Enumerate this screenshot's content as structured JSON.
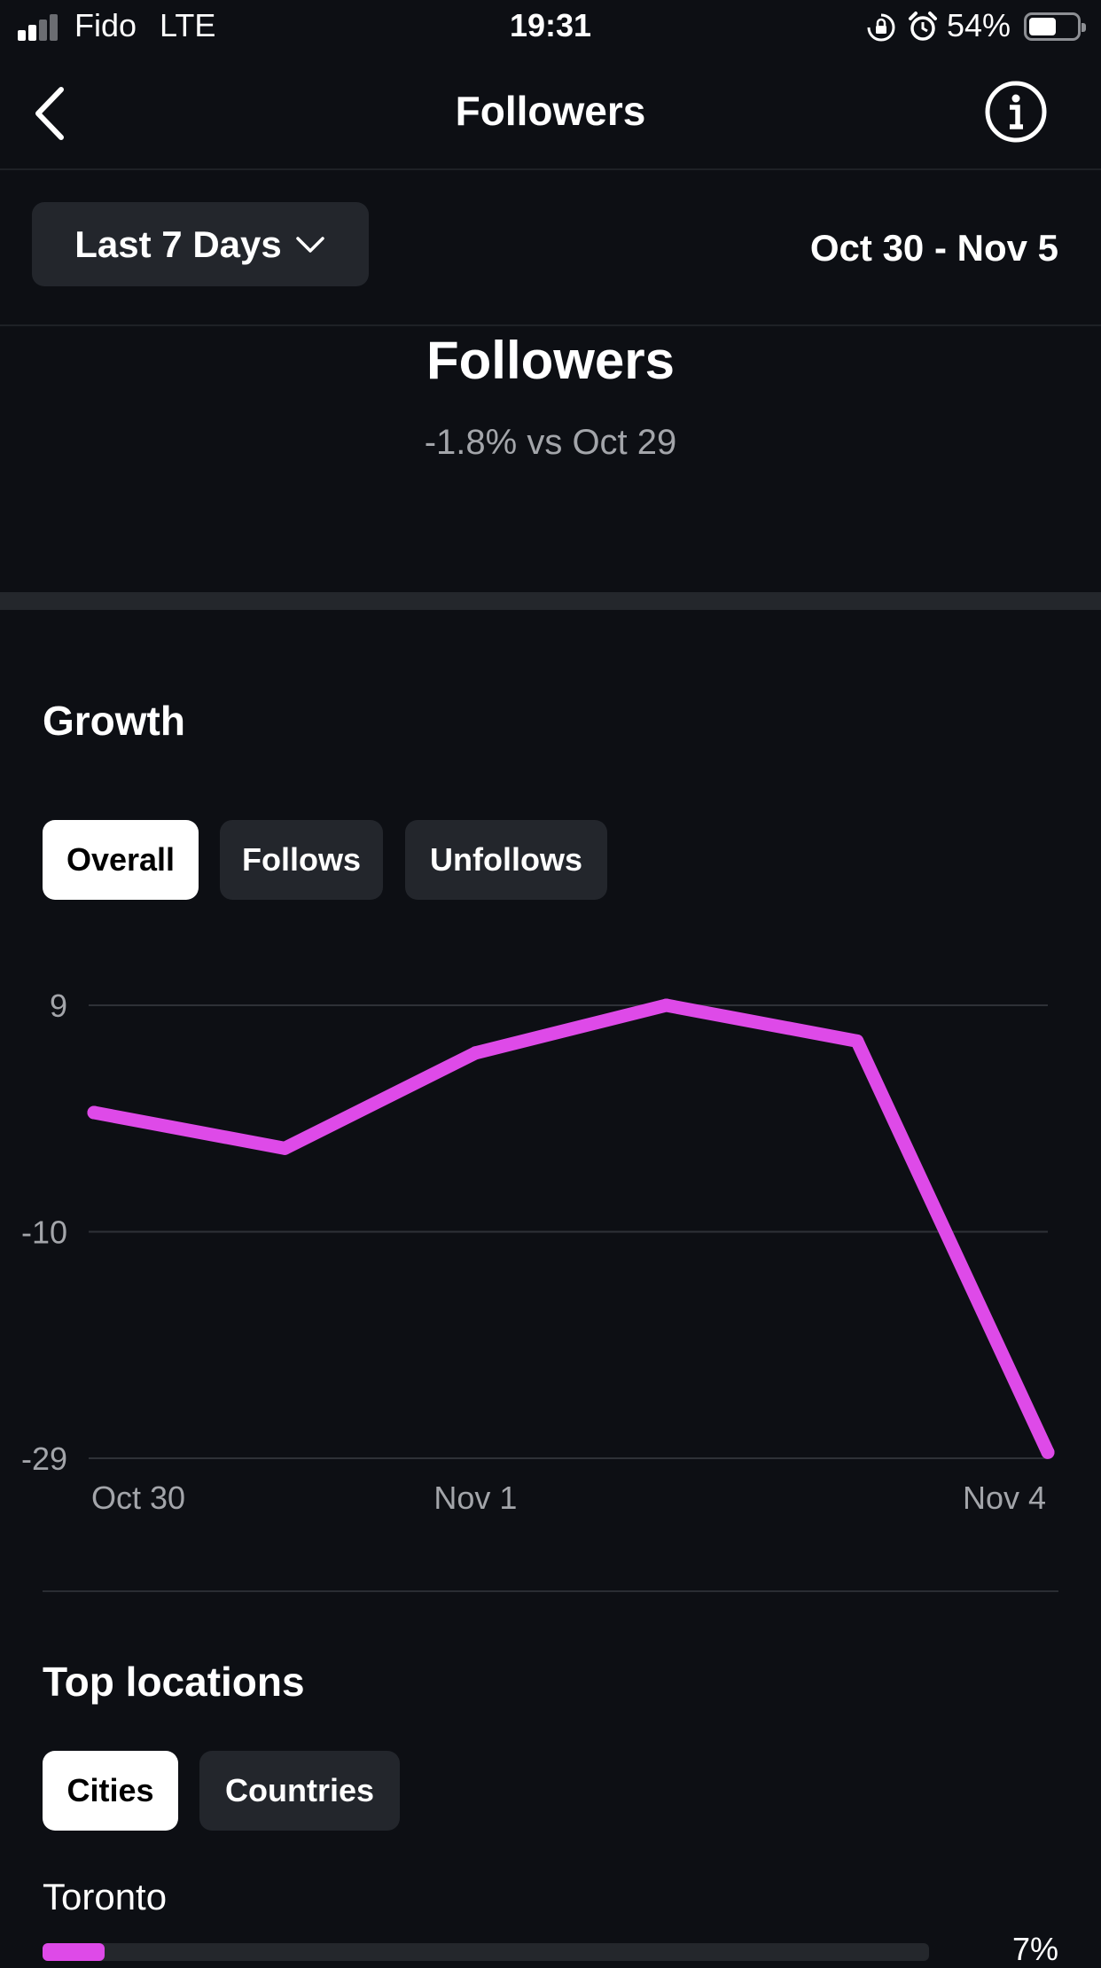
{
  "status_bar": {
    "carrier": "Fido",
    "network": "LTE",
    "time": "19:31",
    "battery": "54%",
    "battery_level": 0.54
  },
  "header": {
    "title": "Followers",
    "back_icon": "chevron-left-icon",
    "info_icon": "info-icon"
  },
  "filter": {
    "range_label": "Last 7 Days",
    "date_range": "Oct 30 - Nov 5"
  },
  "summary": {
    "title": "Followers",
    "change": "-1.8% vs Oct 29"
  },
  "growth": {
    "title": "Growth",
    "tabs": [
      {
        "label": "Overall",
        "active": true
      },
      {
        "label": "Follows",
        "active": false
      },
      {
        "label": "Unfollows",
        "active": false
      }
    ]
  },
  "chart_data": {
    "type": "line",
    "x": [
      "Oct 30",
      "Oct 31",
      "Nov 1",
      "Nov 2",
      "Nov 3",
      "Nov 4"
    ],
    "x_tick_labels": [
      "Oct 30",
      "Nov 1",
      "Nov 4"
    ],
    "y_ticks": [
      "9",
      "-10",
      "-29"
    ],
    "ylim": [
      -29,
      9
    ],
    "series": [
      {
        "values": [
          0,
          -3,
          5,
          9,
          6,
          -28.5
        ],
        "color": "#de4ae8"
      }
    ],
    "grid": true
  },
  "locations": {
    "title": "Top locations",
    "tabs": [
      {
        "label": "Cities",
        "active": true
      },
      {
        "label": "Countries",
        "active": false
      }
    ],
    "items": [
      {
        "name": "Toronto",
        "percent": "7%",
        "fraction": 0.07
      }
    ]
  }
}
